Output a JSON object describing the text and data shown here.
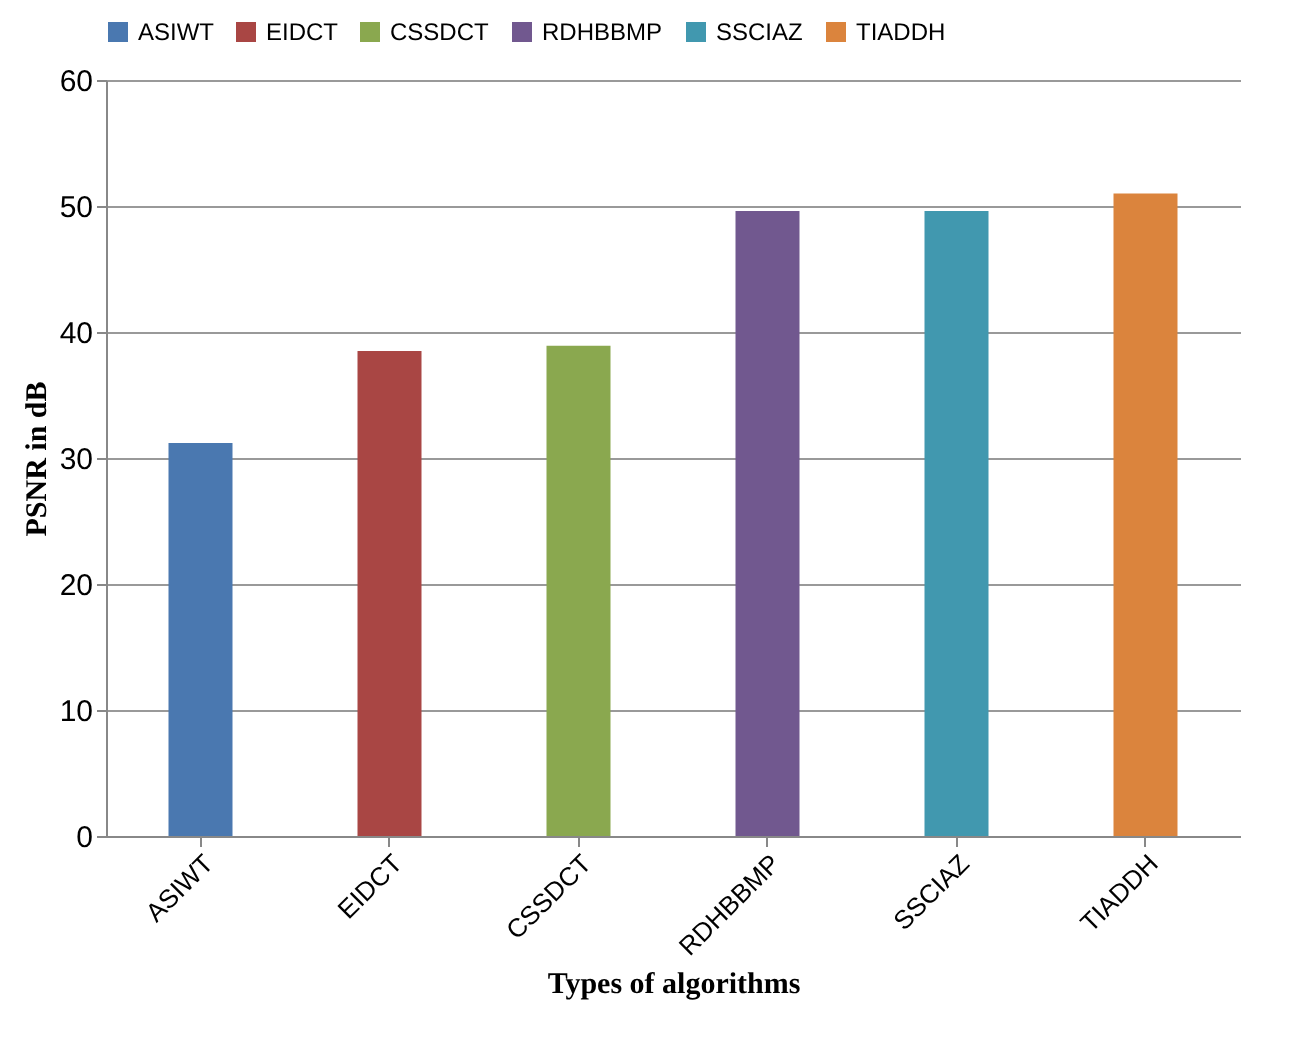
{
  "chart_data": {
    "type": "bar",
    "xlabel": "Types of algorithms",
    "ylabel": "PSNR in dB",
    "categories": [
      "ASIWT",
      "EIDCT",
      "CSSDCT",
      "RDHBBMP",
      "SSCIAZ",
      "TIADDH"
    ],
    "series": [
      {
        "name": "ASIWT",
        "color": "#4a78b0",
        "values": [
          31.2,
          null,
          null,
          null,
          null,
          null
        ]
      },
      {
        "name": "EIDCT",
        "color": "#a94644",
        "values": [
          null,
          38.5,
          null,
          null,
          null,
          null
        ]
      },
      {
        "name": "CSSDCT",
        "color": "#8aa84f",
        "values": [
          null,
          null,
          38.9,
          null,
          null,
          null
        ]
      },
      {
        "name": "RDHBBMP",
        "color": "#71588f",
        "values": [
          null,
          null,
          null,
          49.6,
          null,
          null
        ]
      },
      {
        "name": "SSCIAZ",
        "color": "#4198af",
        "values": [
          null,
          null,
          null,
          null,
          49.6,
          null
        ]
      },
      {
        "name": "TIADDH",
        "color": "#db843d",
        "values": [
          null,
          null,
          null,
          null,
          null,
          51.0
        ]
      }
    ],
    "ylim": [
      0,
      60
    ],
    "yticks": [
      0,
      10,
      20,
      30,
      40,
      50,
      60
    ],
    "grid": "y",
    "legend": "top"
  }
}
